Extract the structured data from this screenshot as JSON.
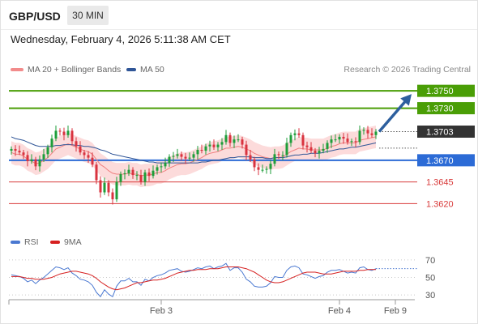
{
  "header": {
    "symbol": "GBP/USD",
    "timeframe": "30 MIN",
    "datetime": "Wednesday, February 4, 2026 5:11:38 AM CET",
    "credit": "Research © 2026 Trading Central"
  },
  "legend": {
    "ma20_label": "MA 20 + Bollinger Bands",
    "ma50_label": "MA 50",
    "rsi_label": "RSI",
    "rsi_ma_label": "9MA"
  },
  "colors": {
    "up": "#1e9e3a",
    "down": "#d9333f",
    "bollinger_fill": "#fbd5d5",
    "ma20": "#f08080",
    "ma50": "#2f5597",
    "target_green": "#4a9e06",
    "pivot_blue": "#2c6bd6",
    "support_red": "#d83a3a",
    "arrow": "#2d5f9e",
    "current_bg": "#333333",
    "rsi": "#4a78d1",
    "rsi_ma": "#d62020"
  },
  "chart_data": [
    {
      "type": "candlestick",
      "title": "GBP/USD 30 MIN",
      "ylim": [
        1.3598,
        1.3766
      ],
      "x_ticks": [
        "Feb 3",
        "Feb 4",
        "Feb 9"
      ],
      "levels": [
        {
          "label": "1.3750",
          "value": 1.375,
          "kind": "resistance"
        },
        {
          "label": "1.3730",
          "value": 1.373,
          "kind": "resistance"
        },
        {
          "label": "1.3703",
          "value": 1.3703,
          "kind": "current"
        },
        {
          "label": "1.3670",
          "value": 1.367,
          "kind": "pivot"
        },
        {
          "label": "1.3645",
          "value": 1.3645,
          "kind": "support"
        },
        {
          "label": "1.3620",
          "value": 1.362,
          "kind": "support"
        }
      ],
      "closes": [
        1.3683,
        1.3681,
        1.3679,
        1.3676,
        1.3669,
        1.3671,
        1.3663,
        1.3671,
        1.3677,
        1.3685,
        1.3695,
        1.3704,
        1.3703,
        1.3699,
        1.3704,
        1.3692,
        1.3686,
        1.3679,
        1.3676,
        1.3673,
        1.3665,
        1.3647,
        1.3633,
        1.3644,
        1.3633,
        1.3625,
        1.3645,
        1.3654,
        1.3655,
        1.3659,
        1.3653,
        1.3653,
        1.3645,
        1.3656,
        1.3652,
        1.3658,
        1.3662,
        1.3663,
        1.3667,
        1.3674,
        1.3675,
        1.3677,
        1.3674,
        1.3672,
        1.3673,
        1.3677,
        1.3682,
        1.3681,
        1.3686,
        1.3688,
        1.3685,
        1.3688,
        1.3691,
        1.3699,
        1.369,
        1.3694,
        1.3694,
        1.3688,
        1.3676,
        1.3671,
        1.3662,
        1.3659,
        1.3659,
        1.366,
        1.3666,
        1.3677,
        1.3676,
        1.3676,
        1.369,
        1.3699,
        1.3701,
        1.3699,
        1.3687,
        1.3685,
        1.3681,
        1.3678,
        1.3681,
        1.3683,
        1.369,
        1.3694,
        1.3694,
        1.3697,
        1.3695,
        1.3691,
        1.3692,
        1.3691,
        1.3704,
        1.3705,
        1.3701,
        1.3699,
        1.3703
      ],
      "ma20": [
        1.3679,
        1.3677,
        1.3677,
        1.3675,
        1.3671,
        1.3669,
        1.3666,
        1.3667,
        1.367,
        1.3673,
        1.3678,
        1.3683,
        1.3685,
        1.3687,
        1.3689,
        1.3687,
        1.3685,
        1.3683,
        1.3681,
        1.368,
        1.3677,
        1.3671,
        1.3665,
        1.3662,
        1.3658,
        1.3655,
        1.3654,
        1.3654,
        1.3654,
        1.3655,
        1.3654,
        1.3654,
        1.3652,
        1.3653,
        1.3653,
        1.3654,
        1.3656,
        1.3656,
        1.3658,
        1.3661,
        1.3663,
        1.3665,
        1.3666,
        1.3666,
        1.3667,
        1.3669,
        1.3671,
        1.3673,
        1.3676,
        1.3678,
        1.3679,
        1.368,
        1.3682,
        1.3684,
        1.3684,
        1.3685,
        1.3686,
        1.3685,
        1.3683,
        1.3681,
        1.3678,
        1.3676,
        1.3674,
        1.3673,
        1.3672,
        1.3673,
        1.3673,
        1.3674,
        1.3677,
        1.368,
        1.3682,
        1.3684,
        1.3683,
        1.3683,
        1.3682,
        1.3682,
        1.3682,
        1.3682,
        1.3684,
        1.3686,
        1.3687,
        1.3689,
        1.369,
        1.369,
        1.369,
        1.369,
        1.3693,
        1.3694,
        1.3695,
        1.3696,
        1.3697
      ],
      "ma50": [
        1.3697,
        1.3695,
        1.3694,
        1.3693,
        1.3691,
        1.3689,
        1.3687,
        1.3686,
        1.3686,
        1.3686,
        1.3686,
        1.3687,
        1.3687,
        1.3688,
        1.3688,
        1.3688,
        1.3687,
        1.3687,
        1.3686,
        1.3686,
        1.3685,
        1.3684,
        1.3682,
        1.3681,
        1.3679,
        1.3677,
        1.3676,
        1.3675,
        1.3674,
        1.3673,
        1.3672,
        1.3671,
        1.367,
        1.3669,
        1.3668,
        1.3668,
        1.3667,
        1.3667,
        1.3667,
        1.3667,
        1.3667,
        1.3667,
        1.3667,
        1.3667,
        1.3667,
        1.3667,
        1.3667,
        1.3668,
        1.3668,
        1.3669,
        1.367,
        1.367,
        1.3671,
        1.3672,
        1.3673,
        1.3673,
        1.3674,
        1.3674,
        1.3674,
        1.3674,
        1.3673,
        1.3673,
        1.3673,
        1.3672,
        1.3672,
        1.3673,
        1.3673,
        1.3673,
        1.3674,
        1.3675,
        1.3676,
        1.3676,
        1.3677,
        1.3677,
        1.3678,
        1.3678,
        1.3678,
        1.3679,
        1.368,
        1.3681,
        1.3682,
        1.3683,
        1.3683,
        1.3684,
        1.3685,
        1.3685,
        1.3686,
        1.3687,
        1.3688,
        1.3689,
        1.369
      ],
      "bollinger_width": 0.0013
    },
    {
      "type": "line",
      "title": "RSI",
      "ylim": [
        20,
        80
      ],
      "y_ticks": [
        70,
        50,
        30
      ],
      "series": [
        {
          "name": "RSI",
          "values": [
            53,
            52,
            51,
            49,
            45,
            47,
            43,
            47,
            50,
            54,
            58,
            62,
            61,
            59,
            61,
            55,
            52,
            48,
            47,
            45,
            41,
            33,
            28,
            36,
            31,
            28,
            40,
            46,
            46,
            49,
            45,
            45,
            41,
            48,
            46,
            50,
            52,
            53,
            55,
            58,
            59,
            60,
            57,
            56,
            57,
            59,
            61,
            60,
            62,
            63,
            60,
            62,
            63,
            66,
            58,
            61,
            61,
            56,
            48,
            45,
            40,
            39,
            39,
            40,
            44,
            51,
            50,
            50,
            58,
            62,
            63,
            61,
            54,
            53,
            51,
            49,
            51,
            52,
            56,
            58,
            58,
            59,
            57,
            55,
            56,
            55,
            61,
            62,
            59,
            58,
            60
          ]
        },
        {
          "name": "9MA",
          "values": [
            51,
            51,
            51,
            50,
            49,
            49,
            48,
            48,
            48,
            49,
            50,
            52,
            54,
            55,
            56,
            57,
            57,
            56,
            55,
            54,
            52,
            49,
            45,
            42,
            39,
            37,
            36,
            37,
            38,
            40,
            42,
            44,
            44,
            45,
            46,
            47,
            47,
            48,
            49,
            51,
            53,
            55,
            56,
            57,
            58,
            58,
            59,
            59,
            59,
            60,
            60,
            60,
            61,
            62,
            62,
            62,
            62,
            61,
            60,
            58,
            56,
            53,
            50,
            47,
            45,
            44,
            44,
            45,
            47,
            49,
            51,
            53,
            55,
            56,
            56,
            56,
            55,
            54,
            54,
            54,
            55,
            56,
            57,
            57,
            57,
            57,
            58,
            58,
            59,
            59,
            59
          ]
        }
      ]
    }
  ]
}
